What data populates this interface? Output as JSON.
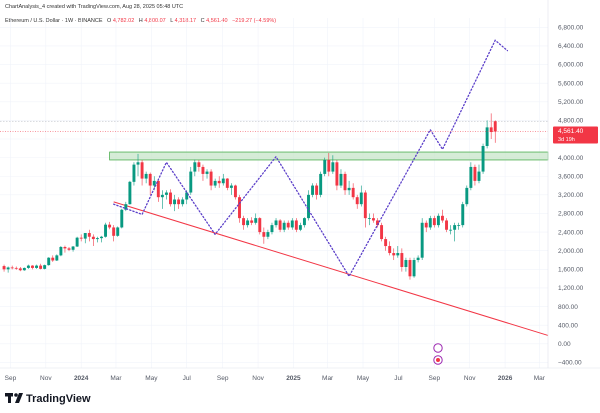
{
  "header": {
    "credit": "ChartAnalysis_4 created with TradingView.com, Aug 28, 2025 05:48 UTC",
    "symbol": "Ethereum / U.S. Dollar · 1W · BINANCE",
    "ohlc": [
      {
        "k": "O",
        "v": "4,782.02"
      },
      {
        "k": "H",
        "v": "4,800.07"
      },
      {
        "k": "L",
        "v": "4,318.17"
      },
      {
        "k": "C",
        "v": "4,561.40"
      }
    ],
    "change": "−219.27 (−4.59%)"
  },
  "brand": "TradingView",
  "colors": {
    "up": "#089981",
    "down": "#f23645",
    "zone_fill": "#c8e6c9",
    "zone_border": "#4caf50",
    "trendline": "#f23645",
    "projection": "#5b3fc9",
    "price_tag": "#f23645"
  },
  "price_tag": {
    "price": "4,561.40",
    "countdown": "3d 19h"
  },
  "chart_data": {
    "type": "candlestick",
    "title": "Ethereum / U.S. Dollar · 1W · BINANCE",
    "y_ticks": [
      -400,
      0,
      400,
      800,
      1200,
      1600,
      2000,
      2400,
      2800,
      3200,
      3600,
      4000,
      4400,
      4800,
      5200,
      5600,
      6000,
      6400,
      6800
    ],
    "y_tick_labels": [
      "−400.00",
      "0.00",
      "400.00",
      "800.00",
      "1,200.00",
      "1,600.00",
      "2,000.00",
      "2,400.00",
      "2,800.00",
      "3,200.00",
      "3,600.00",
      "4,000.00",
      "4,400.00",
      "4,800.00",
      "5,200.00",
      "5,600.00",
      "6,000.00",
      "6,400.00",
      "6,800.00"
    ],
    "ylim": [
      -520,
      7000
    ],
    "x_start": "2023-08-14",
    "x_end": "2026-03-16",
    "x_ticks": [
      {
        "date": "2023-09-01",
        "label": "Sep"
      },
      {
        "date": "2023-11-01",
        "label": "Nov"
      },
      {
        "date": "2024-01-01",
        "label": "2024"
      },
      {
        "date": "2024-03-01",
        "label": "Mar"
      },
      {
        "date": "2024-05-01",
        "label": "May"
      },
      {
        "date": "2024-07-01",
        "label": "Jul"
      },
      {
        "date": "2024-09-01",
        "label": "Sep"
      },
      {
        "date": "2024-11-01",
        "label": "Nov"
      },
      {
        "date": "2025-01-01",
        "label": "2025"
      },
      {
        "date": "2025-03-01",
        "label": "Mar"
      },
      {
        "date": "2025-05-01",
        "label": "May"
      },
      {
        "date": "2025-07-01",
        "label": "Jul"
      },
      {
        "date": "2025-09-01",
        "label": "Sep"
      },
      {
        "date": "2025-11-01",
        "label": "Nov"
      },
      {
        "date": "2026-01-01",
        "label": "2026"
      },
      {
        "date": "2026-03-01",
        "label": "Mar"
      }
    ],
    "candles_start": "2023-08-21",
    "candles_interval_days": 7,
    "candles_ohlc": [
      [
        1670,
        1700,
        1550,
        1600
      ],
      [
        1600,
        1660,
        1530,
        1640
      ],
      [
        1640,
        1680,
        1600,
        1630
      ],
      [
        1630,
        1660,
        1590,
        1620
      ],
      [
        1620,
        1650,
        1560,
        1580
      ],
      [
        1580,
        1640,
        1570,
        1630
      ],
      [
        1630,
        1700,
        1610,
        1680
      ],
      [
        1680,
        1690,
        1600,
        1630
      ],
      [
        1630,
        1700,
        1610,
        1680
      ],
      [
        1680,
        1720,
        1600,
        1610
      ],
      [
        1610,
        1700,
        1600,
        1690
      ],
      [
        1690,
        1860,
        1680,
        1850
      ],
      [
        1850,
        1900,
        1760,
        1790
      ],
      [
        1790,
        1920,
        1780,
        1900
      ],
      [
        1900,
        2100,
        1880,
        2080
      ],
      [
        2080,
        2110,
        1960,
        2050
      ],
      [
        2050,
        2080,
        1990,
        2020
      ],
      [
        2020,
        2100,
        1980,
        2090
      ],
      [
        2090,
        2300,
        2080,
        2280
      ],
      [
        2280,
        2350,
        2200,
        2260
      ],
      [
        2260,
        2380,
        2160,
        2380
      ],
      [
        2380,
        2450,
        2200,
        2300
      ],
      [
        2300,
        2350,
        2100,
        2250
      ],
      [
        2250,
        2300,
        2180,
        2270
      ],
      [
        2270,
        2320,
        2180,
        2300
      ],
      [
        2300,
        2600,
        2280,
        2560
      ],
      [
        2560,
        2620,
        2460,
        2500
      ],
      [
        2500,
        2550,
        2200,
        2320
      ],
      [
        2320,
        2520,
        2300,
        2500
      ],
      [
        2500,
        2900,
        2480,
        2880
      ],
      [
        2880,
        3050,
        2850,
        3000
      ],
      [
        3000,
        3500,
        2990,
        3480
      ],
      [
        3480,
        3900,
        3400,
        3850
      ],
      [
        3850,
        4080,
        3600,
        3900
      ],
      [
        3900,
        3950,
        3400,
        3550
      ],
      [
        3550,
        3700,
        3450,
        3650
      ],
      [
        3650,
        3680,
        3200,
        3400
      ],
      [
        3400,
        3600,
        3300,
        3500
      ],
      [
        3500,
        3540,
        3050,
        3150
      ],
      [
        3150,
        3300,
        2900,
        3200
      ],
      [
        3200,
        3300,
        3100,
        3250
      ],
      [
        3250,
        3320,
        2950,
        3000
      ],
      [
        3000,
        3200,
        2850,
        3100
      ],
      [
        3100,
        3150,
        2900,
        3000
      ],
      [
        3000,
        3150,
        2950,
        3100
      ],
      [
        3100,
        3300,
        3000,
        3250
      ],
      [
        3250,
        3800,
        3200,
        3700
      ],
      [
        3700,
        3960,
        3600,
        3900
      ],
      [
        3900,
        3950,
        3700,
        3800
      ],
      [
        3800,
        3850,
        3500,
        3650
      ],
      [
        3650,
        3750,
        3550,
        3700
      ],
      [
        3700,
        3750,
        3300,
        3400
      ],
      [
        3400,
        3550,
        3350,
        3500
      ],
      [
        3500,
        3600,
        3350,
        3450
      ],
      [
        3450,
        3650,
        3400,
        3550
      ],
      [
        3550,
        3560,
        3300,
        3350
      ],
      [
        3350,
        3450,
        3200,
        3400
      ],
      [
        3400,
        3420,
        3100,
        3150
      ],
      [
        3150,
        3200,
        2600,
        2700
      ],
      [
        2700,
        2750,
        2450,
        2550
      ],
      [
        2550,
        2700,
        2500,
        2650
      ],
      [
        2650,
        2720,
        2550,
        2600
      ],
      [
        2600,
        2800,
        2560,
        2700
      ],
      [
        2700,
        2720,
        2350,
        2400
      ],
      [
        2400,
        2500,
        2150,
        2300
      ],
      [
        2300,
        2450,
        2250,
        2400
      ],
      [
        2400,
        2600,
        2350,
        2550
      ],
      [
        2550,
        2700,
        2500,
        2650
      ],
      [
        2650,
        2680,
        2400,
        2450
      ],
      [
        2450,
        2650,
        2400,
        2600
      ],
      [
        2600,
        2650,
        2450,
        2500
      ],
      [
        2500,
        2700,
        2450,
        2650
      ],
      [
        2650,
        2700,
        2400,
        2450
      ],
      [
        2450,
        2600,
        2420,
        2550
      ],
      [
        2550,
        2720,
        2500,
        2700
      ],
      [
        2700,
        3300,
        2650,
        3200
      ],
      [
        3200,
        3450,
        3150,
        3400
      ],
      [
        3400,
        3450,
        3100,
        3200
      ],
      [
        3200,
        3700,
        3150,
        3650
      ],
      [
        3650,
        4000,
        3600,
        3950
      ],
      [
        3950,
        4100,
        3600,
        3700
      ],
      [
        3700,
        4050,
        3650,
        3900
      ],
      [
        3900,
        3950,
        3300,
        3400
      ],
      [
        3400,
        3750,
        3350,
        3650
      ],
      [
        3650,
        3700,
        3200,
        3300
      ],
      [
        3300,
        3500,
        3200,
        3350
      ],
      [
        3350,
        3450,
        3100,
        3150
      ],
      [
        3150,
        3200,
        2900,
        3000
      ],
      [
        3000,
        3400,
        2950,
        3250
      ],
      [
        3250,
        3300,
        2500,
        2700
      ],
      [
        2700,
        2800,
        2550,
        2700
      ],
      [
        2700,
        2800,
        2600,
        2650
      ],
      [
        2650,
        2700,
        2500,
        2550
      ],
      [
        2550,
        2600,
        2200,
        2250
      ],
      [
        2250,
        2300,
        2000,
        2100
      ],
      [
        2100,
        2200,
        1900,
        1950
      ],
      [
        1950,
        2050,
        1800,
        1900
      ],
      [
        1900,
        2100,
        1850,
        1950
      ],
      [
        1950,
        2050,
        1550,
        1650
      ],
      [
        1650,
        1850,
        1550,
        1800
      ],
      [
        1800,
        1850,
        1380,
        1450
      ],
      [
        1450,
        1850,
        1420,
        1800
      ],
      [
        1800,
        1900,
        1750,
        1850
      ],
      [
        1850,
        2700,
        1800,
        2600
      ],
      [
        2600,
        2650,
        2400,
        2500
      ],
      [
        2500,
        2750,
        2450,
        2700
      ],
      [
        2700,
        2750,
        2500,
        2550
      ],
      [
        2550,
        2800,
        2500,
        2750
      ],
      [
        2750,
        2880,
        2600,
        2650
      ],
      [
        2650,
        2700,
        2400,
        2450
      ],
      [
        2450,
        2550,
        2350,
        2450
      ],
      [
        2450,
        2600,
        2200,
        2550
      ],
      [
        2550,
        2600,
        2450,
        2550
      ],
      [
        2550,
        3050,
        2500,
        3000
      ],
      [
        3000,
        3400,
        2950,
        3350
      ],
      [
        3350,
        3900,
        3300,
        3800
      ],
      [
        3800,
        3850,
        3400,
        3500
      ],
      [
        3500,
        3850,
        3450,
        3700
      ],
      [
        3700,
        4300,
        3650,
        4250
      ],
      [
        4250,
        4800,
        4200,
        4650
      ],
      [
        4650,
        4950,
        4400,
        4550
      ],
      [
        4782.02,
        4800.07,
        4318.17,
        4561.4
      ]
    ],
    "zone": {
      "x_from": "2024-02-19",
      "x_to": "2026-03-16",
      "y_low": 3950,
      "y_high": 4120
    },
    "trendline": [
      {
        "date": "2024-02-26",
        "value": 3050
      },
      {
        "date": "2026-03-16",
        "value": 180
      }
    ],
    "projection_path": [
      {
        "date": "2024-02-26",
        "value": 3000
      },
      {
        "date": "2024-04-15",
        "value": 2780
      },
      {
        "date": "2024-05-27",
        "value": 3900
      },
      {
        "date": "2024-08-19",
        "value": 2350
      },
      {
        "date": "2024-12-02",
        "value": 4020
      },
      {
        "date": "2025-04-07",
        "value": 1450
      },
      {
        "date": "2025-08-25",
        "value": 4600
      },
      {
        "date": "2025-09-15",
        "value": 4180
      },
      {
        "date": "2025-12-15",
        "value": 6520
      },
      {
        "date": "2026-01-05",
        "value": 6300
      }
    ],
    "last_price": 4561.4,
    "prior_close_line": 4782.02
  }
}
